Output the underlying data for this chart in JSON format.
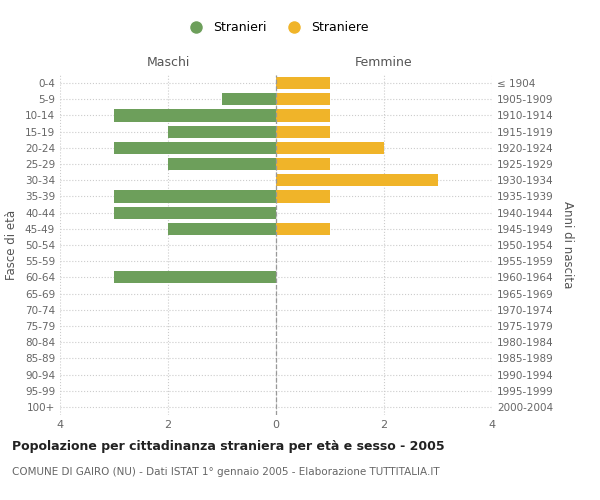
{
  "age_groups": [
    "0-4",
    "5-9",
    "10-14",
    "15-19",
    "20-24",
    "25-29",
    "30-34",
    "35-39",
    "40-44",
    "45-49",
    "50-54",
    "55-59",
    "60-64",
    "65-69",
    "70-74",
    "75-79",
    "80-84",
    "85-89",
    "90-94",
    "95-99",
    "100+"
  ],
  "birth_years": [
    "2000-2004",
    "1995-1999",
    "1990-1994",
    "1985-1989",
    "1980-1984",
    "1975-1979",
    "1970-1974",
    "1965-1969",
    "1960-1964",
    "1955-1959",
    "1950-1954",
    "1945-1949",
    "1940-1944",
    "1935-1939",
    "1930-1934",
    "1925-1929",
    "1920-1924",
    "1915-1919",
    "1910-1914",
    "1905-1909",
    "≤ 1904"
  ],
  "males": [
    0,
    1,
    3,
    2,
    3,
    2,
    0,
    3,
    3,
    2,
    0,
    0,
    3,
    0,
    0,
    0,
    0,
    0,
    0,
    0,
    0
  ],
  "females": [
    1,
    1,
    1,
    1,
    2,
    1,
    3,
    1,
    0,
    1,
    0,
    0,
    0,
    0,
    0,
    0,
    0,
    0,
    0,
    0,
    0
  ],
  "male_color": "#6d9f5b",
  "female_color": "#f0b429",
  "title_main": "Popolazione per cittadinanza straniera per età e sesso - 2005",
  "title_sub": "COMUNE DI GAIRO (NU) - Dati ISTAT 1° gennaio 2005 - Elaborazione TUTTITALIA.IT",
  "legend_male": "Stranieri",
  "legend_female": "Straniere",
  "left_header": "Maschi",
  "right_header": "Femmine",
  "ylabel_left": "Fasce di età",
  "ylabel_right": "Anni di nascita",
  "xlim": [
    -4,
    4
  ],
  "xticks": [
    -4,
    -2,
    0,
    2,
    4
  ],
  "xticklabels": [
    "4",
    "2",
    "0",
    "2",
    "4"
  ],
  "bg_color": "#ffffff",
  "grid_color": "#cccccc",
  "bar_height": 0.75
}
